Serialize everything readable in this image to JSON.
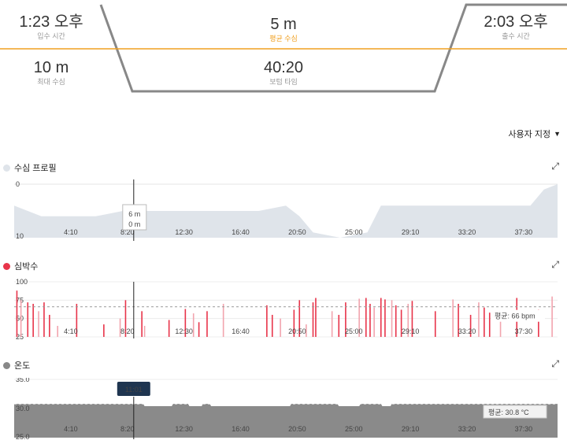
{
  "summary": {
    "entry_time": {
      "value": "1:23 오후",
      "label": "입수 시간"
    },
    "avg_depth": {
      "value": "5 m",
      "label": "평균 수심"
    },
    "exit_time": {
      "value": "2:03 오후",
      "label": "출수 시간"
    },
    "max_depth": {
      "value": "10 m",
      "label": "최대 수심"
    },
    "bottom_time": {
      "value": "40:20",
      "label": "보텀 타임"
    },
    "colors": {
      "accent": "#f0a020",
      "outline": "#888888"
    }
  },
  "customize": {
    "label": "사용자 지정"
  },
  "time_ticks": [
    "4:10",
    "8:20",
    "12:30",
    "16:40",
    "20:50",
    "25:00",
    "29:10",
    "33:20",
    "37:30"
  ],
  "depth": {
    "title": "수심 프로필",
    "color": "#dfe4ea",
    "y_labels": [
      "0",
      "10"
    ],
    "cursor": {
      "depth": "6 m",
      "sub": "0 m"
    }
  },
  "heart": {
    "title": "심박수",
    "color": "#e8344a",
    "y_labels": [
      "100",
      "75",
      "50",
      "25"
    ],
    "avg_label": "평균: 66 bpm"
  },
  "temp": {
    "title": "온도",
    "color": "#888888",
    "y_labels": [
      "35.0",
      "30.0",
      "25.0"
    ],
    "cursor_time": "11:01",
    "avg_label": "평균: 30.8 °C"
  },
  "chart_data": [
    {
      "type": "area",
      "title": "수심 프로필",
      "xlabel": "",
      "ylabel": "",
      "ylim": [
        10,
        0
      ],
      "x": [
        0,
        2,
        4,
        6,
        8,
        10,
        12,
        14,
        16,
        18,
        20,
        21,
        22,
        23,
        24,
        25,
        26,
        27,
        28,
        30,
        32,
        34,
        36,
        38,
        39,
        40
      ],
      "values": [
        4,
        6,
        6,
        6,
        5,
        5,
        5,
        5,
        5,
        5,
        4,
        6,
        9,
        9.5,
        10,
        9.5,
        9,
        4,
        4,
        4,
        4,
        4,
        4,
        4,
        1,
        0
      ]
    },
    {
      "type": "bar",
      "title": "심박수",
      "xlabel": "",
      "ylabel": "",
      "ylim": [
        25,
        100
      ],
      "avg": 66,
      "x": [
        0.2,
        0.5,
        1,
        1.4,
        1.8,
        2.2,
        2.6,
        3.2,
        4.6,
        6.6,
        7.8,
        8.2,
        9.4,
        9.6,
        11.4,
        12.6,
        13.2,
        13.6,
        14.2,
        15.4,
        18.6,
        19.0,
        19.6,
        20.6,
        21.0,
        21.5,
        22.0,
        22.2,
        23.4,
        23.9,
        24.4,
        25.4,
        25.9,
        26.2,
        26.5,
        27.0,
        27.3,
        27.8,
        28.1,
        28.5,
        29.0,
        29.3,
        31.0,
        32.3,
        32.7,
        33.6,
        34.2,
        34.6,
        35.0,
        35.8,
        37.0,
        38.6,
        39.6
      ],
      "values": [
        88,
        75,
        72,
        70,
        60,
        72,
        55,
        40,
        70,
        42,
        50,
        75,
        60,
        40,
        48,
        63,
        57,
        45,
        60,
        70,
        68,
        55,
        50,
        62,
        75,
        42,
        72,
        78,
        60,
        55,
        72,
        77,
        78,
        70,
        65,
        78,
        76,
        75,
        68,
        62,
        70,
        74,
        60,
        76,
        70,
        55,
        72,
        65,
        58,
        52,
        78,
        62,
        80
      ]
    },
    {
      "type": "area",
      "title": "온도",
      "xlabel": "",
      "ylabel": "",
      "ylim": [
        25.0,
        35.0
      ],
      "avg": 30.8,
      "x": [
        0,
        9.5,
        9.6,
        11.6,
        11.7,
        12.8,
        12.9,
        13.8,
        13.9,
        14.4,
        14.5,
        20.3,
        20.4,
        23.8,
        23.9,
        25.4,
        25.5,
        27.0,
        27.1,
        27.7,
        27.8,
        40
      ],
      "values": [
        30.8,
        30.8,
        30.4,
        30.4,
        30.8,
        30.8,
        30.4,
        30.4,
        30.8,
        30.8,
        30.4,
        30.4,
        30.8,
        30.8,
        30.4,
        30.4,
        30.8,
        30.8,
        30.4,
        30.4,
        30.8,
        30.8
      ]
    }
  ]
}
